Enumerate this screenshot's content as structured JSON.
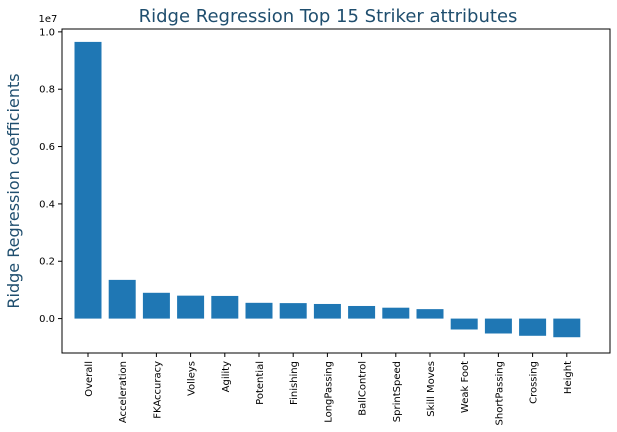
{
  "chart_data": {
    "type": "bar",
    "title": "Ridge Regression Top 15 Striker attributes",
    "xlabel": "",
    "ylabel": "Ridge Regression coefficients",
    "y_scale_label": "1e7",
    "ylim": [
      -0.12,
      1.01
    ],
    "yticks": [
      0.0,
      0.2,
      0.4,
      0.6,
      0.8,
      1.0
    ],
    "ytick_labels": [
      "0.0",
      "0.2",
      "0.4",
      "0.6",
      "0.8",
      "1.0"
    ],
    "bar_color": "#1f77b4",
    "grid": false,
    "categories": [
      "Overall",
      "Acceleration",
      "FKAccuracy",
      "Volleys",
      "Agility",
      "Potential",
      "Finishing",
      "LongPassing",
      "BallControl",
      "SprintSpeed",
      "Skill Moves",
      "Weak Foot",
      "ShortPassing",
      "Crossing",
      "Height"
    ],
    "values": [
      0.965,
      0.135,
      0.09,
      0.08,
      0.079,
      0.055,
      0.054,
      0.051,
      0.044,
      0.038,
      0.033,
      -0.038,
      -0.052,
      -0.06,
      -0.065
    ]
  }
}
